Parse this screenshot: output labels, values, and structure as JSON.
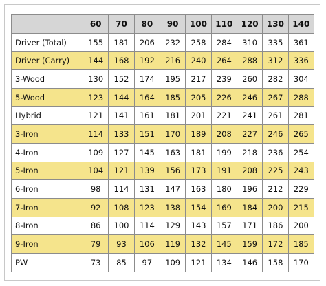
{
  "table": {
    "columns": [
      "",
      "60",
      "70",
      "80",
      "90",
      "100",
      "110",
      "120",
      "130",
      "140"
    ],
    "highlight_color": "#f5e48c",
    "header_color": "#d6d6d6",
    "rows": [
      {
        "club": "Driver (Total)",
        "highlight": false,
        "values": [
          "155",
          "181",
          "206",
          "232",
          "258",
          "284",
          "310",
          "335",
          "361"
        ]
      },
      {
        "club": "Driver (Carry)",
        "highlight": true,
        "values": [
          "144",
          "168",
          "192",
          "216",
          "240",
          "264",
          "288",
          "312",
          "336"
        ]
      },
      {
        "club": "3-Wood",
        "highlight": false,
        "values": [
          "130",
          "152",
          "174",
          "195",
          "217",
          "239",
          "260",
          "282",
          "304"
        ]
      },
      {
        "club": "5-Wood",
        "highlight": true,
        "values": [
          "123",
          "144",
          "164",
          "185",
          "205",
          "226",
          "246",
          "267",
          "288"
        ]
      },
      {
        "club": "Hybrid",
        "highlight": false,
        "values": [
          "121",
          "141",
          "161",
          "181",
          "201",
          "221",
          "241",
          "261",
          "281"
        ]
      },
      {
        "club": "3-Iron",
        "highlight": true,
        "values": [
          "114",
          "133",
          "151",
          "170",
          "189",
          "208",
          "227",
          "246",
          "265"
        ]
      },
      {
        "club": "4-Iron",
        "highlight": false,
        "values": [
          "109",
          "127",
          "145",
          "163",
          "181",
          "199",
          "218",
          "236",
          "254"
        ]
      },
      {
        "club": "5-Iron",
        "highlight": true,
        "values": [
          "104",
          "121",
          "139",
          "156",
          "173",
          "191",
          "208",
          "225",
          "243"
        ]
      },
      {
        "club": "6-Iron",
        "highlight": false,
        "values": [
          "98",
          "114",
          "131",
          "147",
          "163",
          "180",
          "196",
          "212",
          "229"
        ]
      },
      {
        "club": "7-Iron",
        "highlight": true,
        "values": [
          "92",
          "108",
          "123",
          "138",
          "154",
          "169",
          "184",
          "200",
          "215"
        ]
      },
      {
        "club": "8-Iron",
        "highlight": false,
        "values": [
          "86",
          "100",
          "114",
          "129",
          "143",
          "157",
          "171",
          "186",
          "200"
        ]
      },
      {
        "club": "9-Iron",
        "highlight": true,
        "values": [
          "79",
          "93",
          "106",
          "119",
          "132",
          "145",
          "159",
          "172",
          "185"
        ]
      },
      {
        "club": "PW",
        "highlight": false,
        "values": [
          "73",
          "85",
          "97",
          "109",
          "121",
          "134",
          "146",
          "158",
          "170"
        ]
      }
    ]
  }
}
